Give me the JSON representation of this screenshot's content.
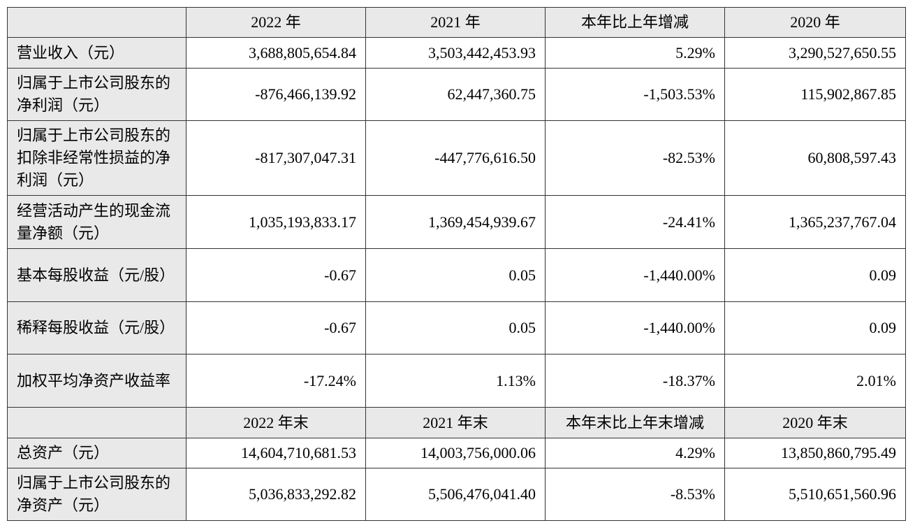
{
  "header1": [
    "",
    "2022 年",
    "2021 年",
    "本年比上年增减",
    "2020 年"
  ],
  "rows1": [
    {
      "label": "营业收入（元）",
      "values": [
        "3,688,805,654.84",
        "3,503,442,453.93",
        "5.29%",
        "3,290,527,650.55"
      ]
    },
    {
      "label": "归属于上市公司股东的净利润（元）",
      "values": [
        "-876,466,139.92",
        "62,447,360.75",
        "-1,503.53%",
        "115,902,867.85"
      ]
    },
    {
      "label": "归属于上市公司股东的扣除非经常性损益的净利润（元）",
      "values": [
        "-817,307,047.31",
        "-447,776,616.50",
        "-82.53%",
        "60,808,597.43"
      ]
    },
    {
      "label": "经营活动产生的现金流量净额（元）",
      "values": [
        "1,035,193,833.17",
        "1,369,454,939.67",
        "-24.41%",
        "1,365,237,767.04"
      ]
    },
    {
      "label": "基本每股收益（元/股）",
      "values": [
        "-0.67",
        "0.05",
        "-1,440.00%",
        "0.09"
      ]
    },
    {
      "label": "稀释每股收益（元/股）",
      "values": [
        "-0.67",
        "0.05",
        "-1,440.00%",
        "0.09"
      ]
    },
    {
      "label": "加权平均净资产收益率",
      "values": [
        "-17.24%",
        "1.13%",
        "-18.37%",
        "2.01%"
      ]
    }
  ],
  "header2": [
    "",
    "2022 年末",
    "2021 年末",
    "本年末比上年末增减",
    "2020 年末"
  ],
  "rows2": [
    {
      "label": "总资产（元）",
      "values": [
        "14,604,710,681.53",
        "14,003,756,000.06",
        "4.29%",
        "13,850,860,795.49"
      ]
    },
    {
      "label": "归属于上市公司股东的净资产（元）",
      "values": [
        "5,036,833,292.82",
        "5,506,476,041.40",
        "-8.53%",
        "5,510,651,560.96"
      ]
    }
  ]
}
